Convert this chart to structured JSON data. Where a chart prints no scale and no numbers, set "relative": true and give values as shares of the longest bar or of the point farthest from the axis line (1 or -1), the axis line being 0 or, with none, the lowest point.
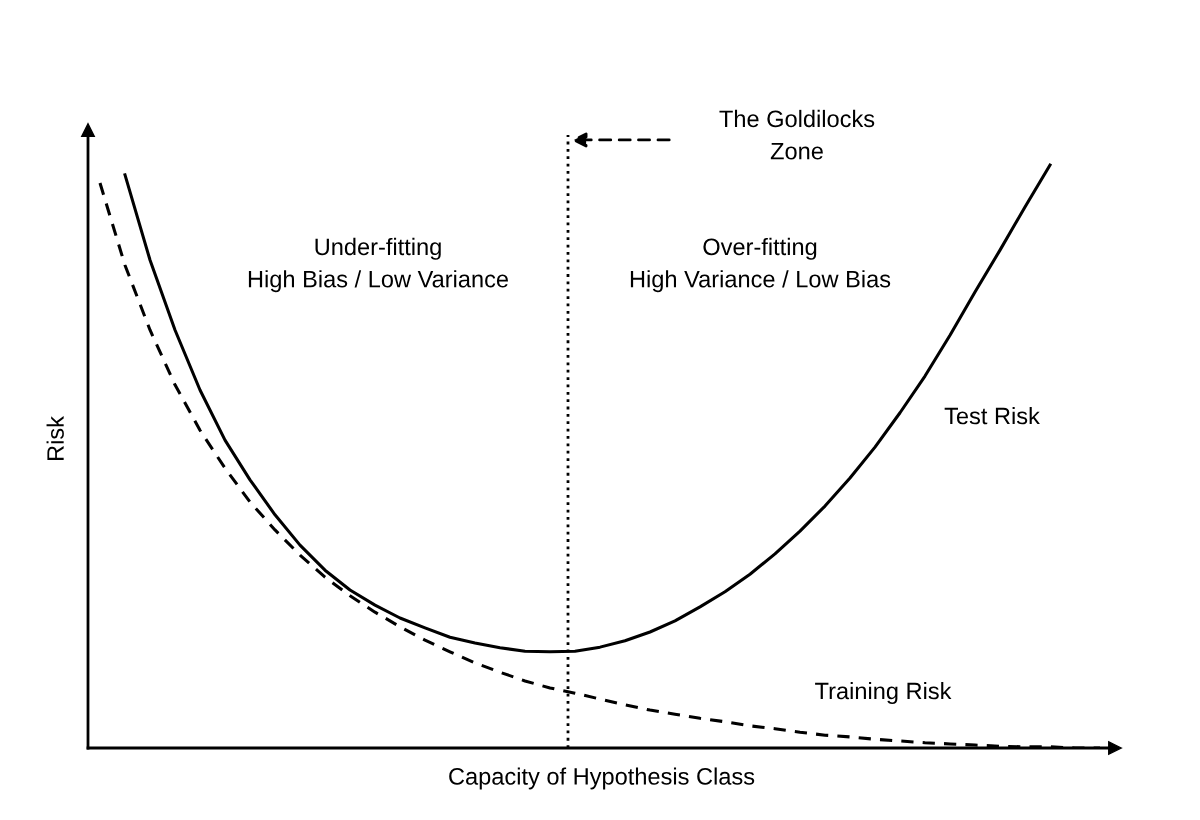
{
  "chart_data": {
    "type": "line",
    "relative": true,
    "xlabel": "Capacity of Hypothesis Class",
    "ylabel": "Risk",
    "categories": [
      null,
      null,
      null,
      null,
      null,
      null,
      null,
      null,
      null,
      null,
      null,
      null,
      null,
      null,
      null,
      null,
      null,
      null,
      null,
      null,
      null,
      null,
      null,
      null,
      null,
      null,
      null,
      null,
      null,
      null,
      null,
      null,
      null,
      null,
      null,
      null,
      null,
      null,
      null,
      null,
      null
    ],
    "series": [
      {
        "name": "Test Risk",
        "color": "#000000",
        "line_style": "solid",
        "values": [
          null,
          0.983,
          0.837,
          0.717,
          0.614,
          0.528,
          0.46,
          0.4,
          0.348,
          0.305,
          0.271,
          0.245,
          0.223,
          0.206,
          0.19,
          0.18,
          0.172,
          0.166,
          0.165,
          0.166,
          0.173,
          0.184,
          0.199,
          0.218,
          0.242,
          0.268,
          0.298,
          0.333,
          0.372,
          0.415,
          0.463,
          0.516,
          0.575,
          0.638,
          0.708,
          0.782,
          0.854,
          0.928,
          1,
          null,
          null
        ]
      },
      {
        "name": "Training Risk",
        "color": "#000000",
        "line_style": "dashed",
        "values": [
          0.969,
          0.828,
          0.717,
          0.623,
          0.545,
          0.48,
          0.422,
          0.374,
          0.331,
          0.293,
          0.261,
          0.233,
          0.208,
          0.185,
          0.165,
          0.146,
          0.13,
          0.115,
          0.103,
          0.094,
          0.084,
          0.074,
          0.065,
          0.058,
          0.051,
          0.045,
          0.038,
          0.033,
          0.027,
          0.022,
          0.019,
          0.015,
          0.012,
          0.009,
          0.007,
          0.005,
          0.003,
          0.002,
          0.002,
          0,
          0
        ]
      }
    ],
    "annotations": [
      "The Goldilocks\nZone",
      "Under-fitting\nHigh Bias / Low Variance",
      "Over-fitting\nHigh Variance / Low Bias"
    ],
    "legend": false
  }
}
